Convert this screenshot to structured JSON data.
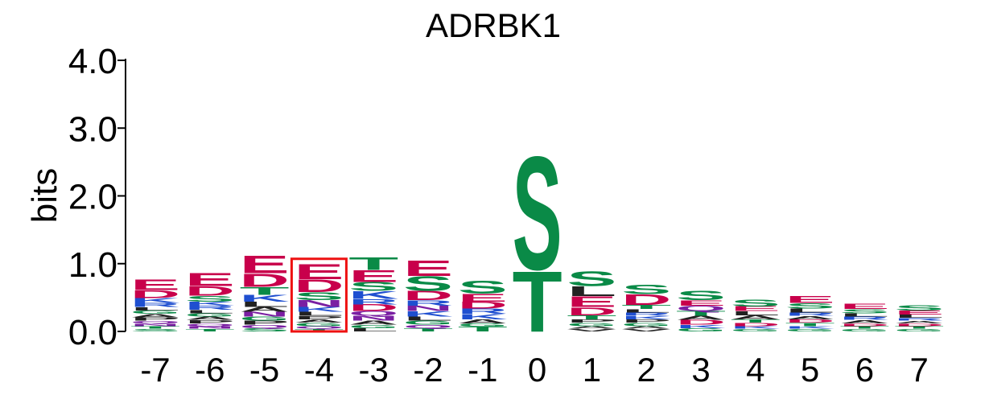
{
  "chart_data": {
    "type": "sequence-logo",
    "title": "ADRBK1",
    "ylabel": "bits",
    "ylim": [
      0,
      4.0
    ],
    "yticks": [
      "0.0",
      "1.0",
      "2.0",
      "3.0",
      "4.0"
    ],
    "categories": [
      "-7",
      "-6",
      "-5",
      "-4",
      "-3",
      "-2",
      "-1",
      "0",
      "1",
      "2",
      "3",
      "4",
      "5",
      "6",
      "7"
    ],
    "highlighted_position": "-4",
    "highlight_color": "#ee1111",
    "colors": {
      "acidic": "#c8004b",
      "polar": "#0a8a47",
      "basic": "#1f4fd0",
      "hydrophobic": "#222222",
      "amide": "#7a1fa2"
    },
    "positions": [
      {
        "pos": "-7",
        "letters": [
          [
            "S",
            0.04
          ],
          [
            "T",
            0.04
          ],
          [
            "N",
            0.04
          ],
          [
            "Q",
            0.04
          ],
          [
            "P",
            0.05
          ],
          [
            "A",
            0.05
          ],
          [
            "G",
            0.05
          ],
          [
            "L",
            0.05
          ],
          [
            "R",
            0.06
          ],
          [
            "K",
            0.07
          ],
          [
            "D",
            0.12
          ],
          [
            "E",
            0.16
          ]
        ]
      },
      {
        "pos": "-6",
        "letters": [
          [
            "T",
            0.04
          ],
          [
            "N",
            0.04
          ],
          [
            "Q",
            0.04
          ],
          [
            "P",
            0.05
          ],
          [
            "A",
            0.05
          ],
          [
            "G",
            0.05
          ],
          [
            "L",
            0.05
          ],
          [
            "R",
            0.06
          ],
          [
            "K",
            0.06
          ],
          [
            "S",
            0.09
          ],
          [
            "D",
            0.14
          ],
          [
            "E",
            0.2
          ]
        ]
      },
      {
        "pos": "-5",
        "letters": [
          [
            "S",
            0.05
          ],
          [
            "Q",
            0.05
          ],
          [
            "P",
            0.06
          ],
          [
            "G",
            0.06
          ],
          [
            "N",
            0.07
          ],
          [
            "A",
            0.07
          ],
          [
            "L",
            0.08
          ],
          [
            "K",
            0.1
          ],
          [
            "T",
            0.12
          ],
          [
            "D",
            0.2
          ],
          [
            "E",
            0.27
          ]
        ]
      },
      {
        "pos": "-4",
        "letters": [
          [
            "T",
            0.04
          ],
          [
            "Q",
            0.04
          ],
          [
            "G",
            0.05
          ],
          [
            "A",
            0.05
          ],
          [
            "P",
            0.05
          ],
          [
            "L",
            0.06
          ],
          [
            "K",
            0.07
          ],
          [
            "N",
            0.1
          ],
          [
            "S",
            0.12
          ],
          [
            "D",
            0.19
          ],
          [
            "E",
            0.23
          ]
        ]
      },
      {
        "pos": "-3",
        "letters": [
          [
            "L",
            0.05
          ],
          [
            "G",
            0.05
          ],
          [
            "A",
            0.06
          ],
          [
            "N",
            0.07
          ],
          [
            "Q",
            0.07
          ],
          [
            "D",
            0.1
          ],
          [
            "R",
            0.08
          ],
          [
            "K",
            0.12
          ],
          [
            "S",
            0.13
          ],
          [
            "E",
            0.18
          ],
          [
            "T",
            0.19
          ]
        ]
      },
      {
        "pos": "-2",
        "letters": [
          [
            "T",
            0.05
          ],
          [
            "Q",
            0.05
          ],
          [
            "G",
            0.06
          ],
          [
            "L",
            0.06
          ],
          [
            "K",
            0.08
          ],
          [
            "N",
            0.08
          ],
          [
            "R",
            0.08
          ],
          [
            "D",
            0.14
          ],
          [
            "S",
            0.22
          ],
          [
            "E",
            0.24
          ]
        ]
      },
      {
        "pos": "-1",
        "letters": [
          [
            "T",
            0.07
          ],
          [
            "G",
            0.05
          ],
          [
            "A",
            0.06
          ],
          [
            "K",
            0.08
          ],
          [
            "R",
            0.08
          ],
          [
            "D",
            0.1
          ],
          [
            "E",
            0.12
          ],
          [
            "S",
            0.2
          ]
        ]
      },
      {
        "pos": "0",
        "letters": [
          [
            "T",
            0.92
          ],
          [
            "S",
            1.72
          ]
        ]
      },
      {
        "pos": "1",
        "letters": [
          [
            "V",
            0.04
          ],
          [
            "A",
            0.04
          ],
          [
            "G",
            0.05
          ],
          [
            "P",
            0.05
          ],
          [
            "T",
            0.06
          ],
          [
            "D",
            0.12
          ],
          [
            "E",
            0.16
          ],
          [
            "L",
            0.15
          ],
          [
            "S",
            0.22
          ]
        ]
      },
      {
        "pos": "2",
        "letters": [
          [
            "V",
            0.04
          ],
          [
            "A",
            0.04
          ],
          [
            "G",
            0.05
          ],
          [
            "P",
            0.05
          ],
          [
            "K",
            0.05
          ],
          [
            "R",
            0.05
          ],
          [
            "L",
            0.05
          ],
          [
            "T",
            0.06
          ],
          [
            "D",
            0.16
          ],
          [
            "S",
            0.14
          ]
        ]
      },
      {
        "pos": "3",
        "letters": [
          [
            "G",
            0.05
          ],
          [
            "K",
            0.05
          ],
          [
            "D",
            0.07
          ],
          [
            "A",
            0.06
          ],
          [
            "T",
            0.07
          ],
          [
            "Q",
            0.08
          ],
          [
            "E",
            0.08
          ],
          [
            "S",
            0.14
          ]
        ]
      },
      {
        "pos": "4",
        "letters": [
          [
            "G",
            0.04
          ],
          [
            "K",
            0.04
          ],
          [
            "D",
            0.05
          ],
          [
            "T",
            0.05
          ],
          [
            "A",
            0.06
          ],
          [
            "L",
            0.06
          ],
          [
            "E",
            0.07
          ],
          [
            "S",
            0.1
          ]
        ]
      },
      {
        "pos": "5",
        "letters": [
          [
            "G",
            0.04
          ],
          [
            "K",
            0.04
          ],
          [
            "T",
            0.05
          ],
          [
            "D",
            0.05
          ],
          [
            "A",
            0.05
          ],
          [
            "R",
            0.05
          ],
          [
            "L",
            0.06
          ],
          [
            "S",
            0.08
          ],
          [
            "E",
            0.1
          ]
        ]
      },
      {
        "pos": "6",
        "letters": [
          [
            "G",
            0.04
          ],
          [
            "T",
            0.04
          ],
          [
            "D",
            0.04
          ],
          [
            "A",
            0.05
          ],
          [
            "R",
            0.05
          ],
          [
            "L",
            0.05
          ],
          [
            "S",
            0.06
          ],
          [
            "E",
            0.08
          ]
        ]
      },
      {
        "pos": "7",
        "letters": [
          [
            "G",
            0.04
          ],
          [
            "T",
            0.04
          ],
          [
            "D",
            0.04
          ],
          [
            "A",
            0.04
          ],
          [
            "R",
            0.04
          ],
          [
            "L",
            0.05
          ],
          [
            "E",
            0.06
          ],
          [
            "S",
            0.08
          ]
        ]
      }
    ]
  }
}
